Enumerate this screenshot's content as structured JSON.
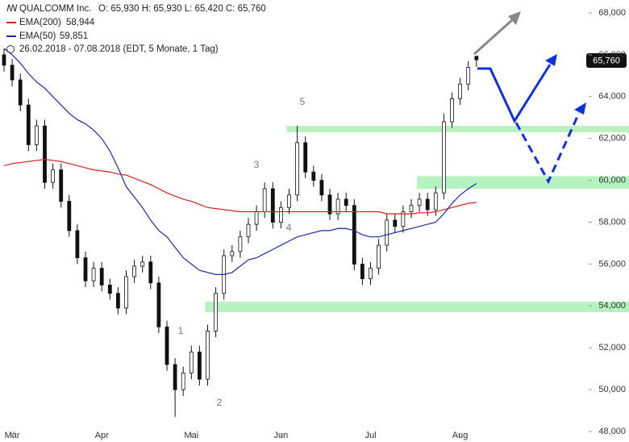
{
  "chart_data": {
    "type": "candlestick",
    "title": "QUALCOMM Inc.",
    "ohlc_label": "O: 65,930   H: 65,930   L: 65,420   C: 65,760",
    "period": "26.02.2018 - 07.08.2018   (EDT, 5 Monate, 1 Tag)",
    "last_label": "65,760",
    "xticks": [
      {
        "value": 1,
        "label": "Mär"
      },
      {
        "value": 12,
        "label": "Apr"
      },
      {
        "value": 23,
        "label": "Mai"
      },
      {
        "value": 34,
        "label": "Jun"
      },
      {
        "value": 45,
        "label": "Jul"
      },
      {
        "value": 56,
        "label": "Aug"
      }
    ],
    "ylim": [
      48000,
      68000
    ],
    "yticks": [
      {
        "value": 48000,
        "label": "48,000"
      },
      {
        "value": 50000,
        "label": "50,000"
      },
      {
        "value": 52000,
        "label": "52,000"
      },
      {
        "value": 54000,
        "label": "54,000"
      },
      {
        "value": 56000,
        "label": "56,000"
      },
      {
        "value": 58000,
        "label": "58,000"
      },
      {
        "value": 60000,
        "label": "60,000"
      },
      {
        "value": 62000,
        "label": "62,000"
      },
      {
        "value": 64000,
        "label": "64,000"
      },
      {
        "value": 66000,
        "label": "66,000"
      },
      {
        "value": 68000,
        "label": "68,000"
      }
    ],
    "open": [
      66000,
      65500,
      64800,
      63600,
      61700,
      62600,
      59900,
      60500,
      59000,
      57600,
      56300,
      55200,
      55800,
      55000,
      54600,
      53900,
      55400,
      55900,
      56100,
      55100,
      53000,
      51200,
      50000,
      50800,
      51800,
      50500,
      52800,
      54600,
      56400,
      56600,
      57300,
      57900,
      58500,
      59600,
      58000,
      58700,
      59300,
      61800,
      60400,
      60000,
      59300,
      58400,
      59100,
      58800,
      56000,
      55300,
      55800,
      56900,
      58100,
      57800,
      58500,
      58800,
      59100,
      58600,
      59400,
      62800,
      63900,
      64600,
      65930
    ],
    "high": [
      66300,
      65800,
      65100,
      63900,
      62900,
      62900,
      60800,
      60800,
      59300,
      57900,
      56600,
      56100,
      56100,
      55300,
      54900,
      55700,
      56200,
      56400,
      56400,
      55400,
      53300,
      51500,
      51100,
      52100,
      52100,
      53100,
      54900,
      56700,
      56900,
      57600,
      58200,
      58800,
      59900,
      59900,
      59000,
      59600,
      62600,
      62100,
      60700,
      60300,
      59600,
      59400,
      59400,
      59100,
      56300,
      56100,
      57200,
      58400,
      58400,
      58800,
      59100,
      59400,
      59400,
      59700,
      63200,
      64200,
      64900,
      65700,
      65930
    ],
    "low": [
      65200,
      64500,
      63300,
      61400,
      61400,
      59600,
      59600,
      58700,
      57300,
      56000,
      54900,
      54900,
      54700,
      54300,
      53600,
      53600,
      55100,
      55600,
      54800,
      52700,
      50900,
      48700,
      49700,
      50500,
      50200,
      50200,
      52500,
      54300,
      56100,
      56300,
      57000,
      57600,
      58200,
      57700,
      57700,
      58400,
      59000,
      60100,
      59700,
      59000,
      58100,
      58100,
      58500,
      55700,
      55000,
      55000,
      55500,
      56600,
      57500,
      57500,
      58200,
      58500,
      58300,
      58300,
      59100,
      62500,
      63600,
      64300,
      65420
    ],
    "close": [
      65500,
      64800,
      63600,
      61700,
      62600,
      59900,
      60500,
      59000,
      57600,
      56300,
      55200,
      55800,
      55000,
      54600,
      53900,
      55400,
      55900,
      56100,
      55100,
      53000,
      51200,
      50000,
      50800,
      51800,
      50500,
      52800,
      54600,
      56400,
      56600,
      57300,
      57900,
      58500,
      59600,
      58000,
      58700,
      59300,
      61800,
      60400,
      60000,
      59300,
      58400,
      59100,
      58800,
      56000,
      55300,
      55800,
      56900,
      58100,
      57800,
      58500,
      58800,
      59100,
      58600,
      59400,
      62800,
      63900,
      64600,
      65400,
      65760
    ],
    "series": [
      {
        "name": "EMA(200)",
        "color": "#d42020",
        "value_label": "58,944",
        "values": [
          60700,
          60800,
          60850,
          60900,
          60950,
          61000,
          60950,
          60900,
          60800,
          60700,
          60600,
          60500,
          60450,
          60400,
          60300,
          60250,
          60100,
          59950,
          59800,
          59600,
          59400,
          59250,
          59100,
          59000,
          58850,
          58700,
          58650,
          58600,
          58550,
          58500,
          58500,
          58500,
          58500,
          58500,
          58500,
          58500,
          58500,
          58500,
          58500,
          58500,
          58500,
          58500,
          58500,
          58500,
          58500,
          58500,
          58500,
          58400,
          58400,
          58400,
          58400,
          58450,
          58450,
          58500,
          58600,
          58700,
          58800,
          58900,
          58944
        ]
      },
      {
        "name": "EMA(50)",
        "color": "#1a2aa8",
        "value_label": "59,851",
        "values": [
          66300,
          66000,
          65600,
          65100,
          64700,
          64400,
          64000,
          63600,
          63200,
          62900,
          62700,
          62400,
          62000,
          61400,
          60600,
          59700,
          59200,
          58700,
          58100,
          57600,
          57300,
          56800,
          56300,
          56000,
          55700,
          55600,
          55500,
          55500,
          55600,
          55900,
          56200,
          56300,
          56500,
          56700,
          56900,
          57100,
          57300,
          57400,
          57500,
          57600,
          57600,
          57700,
          57700,
          57600,
          57400,
          57300,
          57300,
          57400,
          57500,
          57600,
          57700,
          57800,
          57900,
          58000,
          58400,
          58900,
          59300,
          59600,
          59851
        ]
      }
    ],
    "zones": [
      {
        "from": 35,
        "low": 62300,
        "high": 62600
      },
      {
        "from": 51,
        "low": 59600,
        "high": 60200
      },
      {
        "from": 25,
        "low": 53700,
        "high": 54200
      }
    ],
    "annotations": [
      "1",
      "2",
      "3",
      "4",
      "5"
    ]
  }
}
